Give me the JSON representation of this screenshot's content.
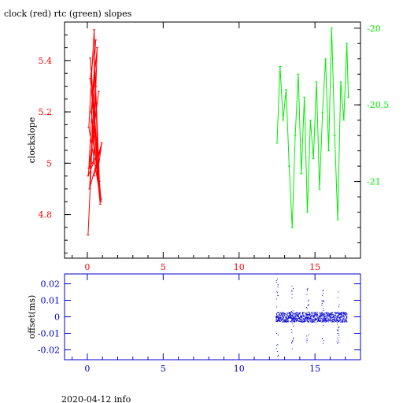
{
  "page": {
    "title": "clock (red) rtc (green) slopes",
    "footer": "2020-04-12 info"
  },
  "colors": {
    "red": "#ff0000",
    "green": "#00ee00",
    "blue": "#0000cc",
    "frame": "#000000"
  },
  "chart_data": [
    {
      "type": "line",
      "title": "clock (red) rtc (green) slopes",
      "ylabel": "clockslope",
      "xlim": [
        -1.5,
        18
      ],
      "ylim": [
        4.63,
        5.55
      ],
      "x_ticks": [
        0,
        5,
        10,
        15
      ],
      "y_ticks": [
        4.8,
        5,
        5.2,
        5.4
      ],
      "y_tick_labels": [
        "4.8",
        "5",
        "5.2",
        "5.4"
      ],
      "y2lim": [
        -21.5,
        -19.96
      ],
      "y2_ticks": [
        -20,
        -20.5,
        -21
      ],
      "y2_tick_labels": [
        "-20",
        "-20.5",
        "-21"
      ],
      "grid": false,
      "series": [
        {
          "color": "red",
          "x": [
            0.05,
            0.3,
            0.55,
            0.8,
            0.2,
            0.6,
            0.9,
            0.1,
            0.45,
            0.7,
            0.95,
            0.15,
            0.5,
            0.85,
            0.25,
            0.65,
            0.4,
            0.05,
            0.75,
            0.35,
            0.9,
            0.2,
            0.55,
            0.1,
            0.85,
            0.45
          ],
          "y": [
            4.72,
            5.05,
            5.3,
            4.93,
            5.41,
            5.02,
            4.85,
            5.14,
            5.52,
            4.97,
            5.08,
            4.9,
            5.35,
            4.84,
            5.2,
            5.45,
            5.0,
            4.95,
            5.28,
            5.1,
            4.86,
            5.33,
            5.48,
            4.98,
            5.05,
            4.95
          ]
        },
        {
          "color": "green",
          "axis": "right",
          "x": [
            12.5,
            12.7,
            12.9,
            13.1,
            13.3,
            13.5,
            13.7,
            13.9,
            14.1,
            14.3,
            14.5,
            14.7,
            14.9,
            15.1,
            15.3,
            15.5,
            15.7,
            15.9,
            16.1,
            16.3,
            16.5,
            16.7,
            16.9,
            17.1,
            17.2
          ],
          "y": [
            -20.75,
            -20.25,
            -20.6,
            -20.4,
            -20.9,
            -21.3,
            -20.7,
            -20.3,
            -20.95,
            -20.45,
            -21.2,
            -20.6,
            -20.85,
            -20.35,
            -21.05,
            -20.55,
            -20.2,
            -20.8,
            -20.0,
            -20.7,
            -21.25,
            -20.35,
            -20.6,
            -20.1,
            -20.45
          ]
        }
      ]
    },
    {
      "type": "scatter",
      "ylabel": "offset(ms)",
      "xlim": [
        -1.5,
        18
      ],
      "ylim": [
        -0.026,
        0.026
      ],
      "x_ticks": [
        0,
        5,
        10,
        15
      ],
      "y_ticks": [
        -0.02,
        -0.01,
        0,
        0.01,
        0.02
      ],
      "y_tick_labels": [
        "-0.02",
        "-0.01",
        "0",
        "0.01",
        "0.02"
      ],
      "grid": false,
      "series": [
        {
          "color": "blue",
          "x_range": [
            12.4,
            17.1
          ],
          "baseline": 0,
          "spikes_x": [
            12.5,
            13.5,
            14.5,
            15.5,
            16.5
          ],
          "spikes_y": [
            0.024,
            0.02,
            0.018,
            0.017,
            0.016
          ]
        }
      ]
    }
  ]
}
